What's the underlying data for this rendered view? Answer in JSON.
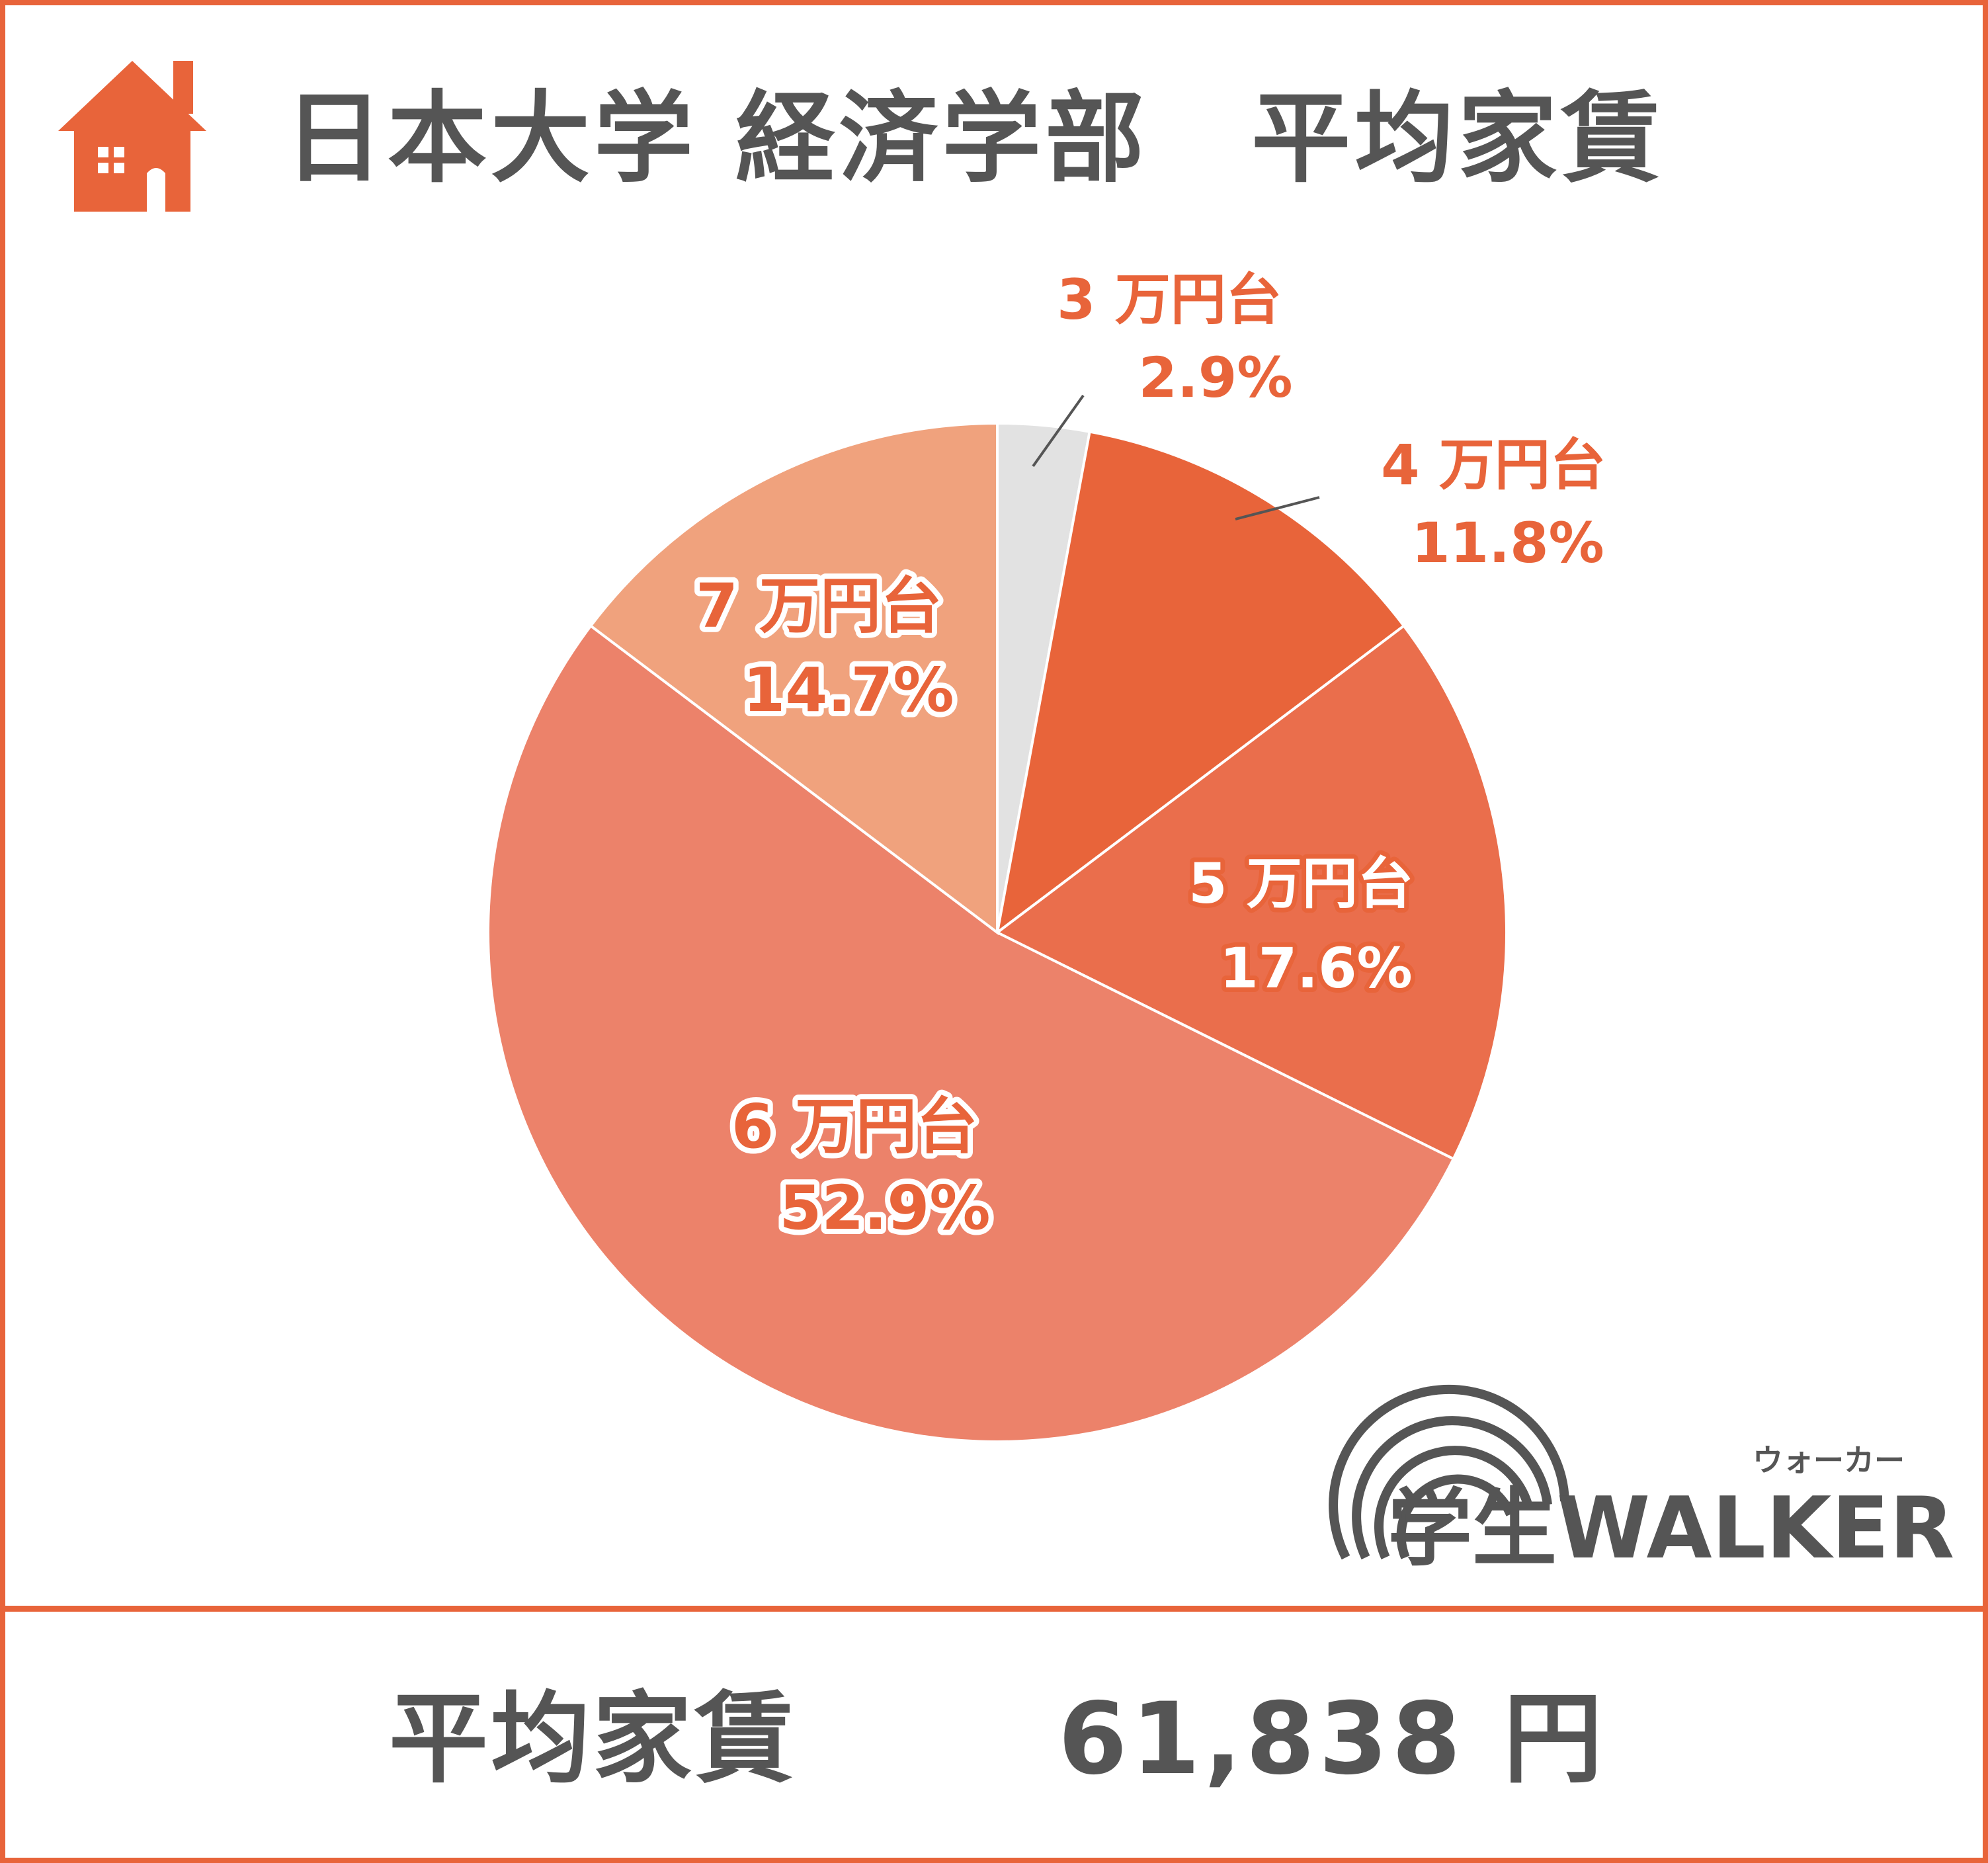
{
  "title": "日本大学 経済学部　平均家賃",
  "summary": {
    "label": "平均家賃",
    "value": "61,838 円"
  },
  "logo": {
    "text": "学生WALKER",
    "ruby": "ウォーカー"
  },
  "icons": {
    "title_icon": "house-icon"
  },
  "colors": {
    "accent": "#e8643a",
    "text": "#555555",
    "gray_slice": "#e2e2e2"
  },
  "chart_data": {
    "type": "pie",
    "title": "日本大学 経済学部　平均家賃",
    "categories": [
      "3 万円台",
      "4 万円台",
      "5 万円台",
      "6 万円台",
      "7 万円台"
    ],
    "values": [
      2.9,
      11.8,
      17.6,
      52.9,
      14.7
    ],
    "value_labels": [
      "2.9%",
      "11.8%",
      "17.6%",
      "52.9%",
      "14.7%"
    ],
    "colors": [
      "#e2e2e2",
      "#e8643a",
      "#ea6e4c",
      "#ec826a",
      "#f0a27d"
    ],
    "start_angle_deg": 0,
    "direction": "clockwise"
  }
}
